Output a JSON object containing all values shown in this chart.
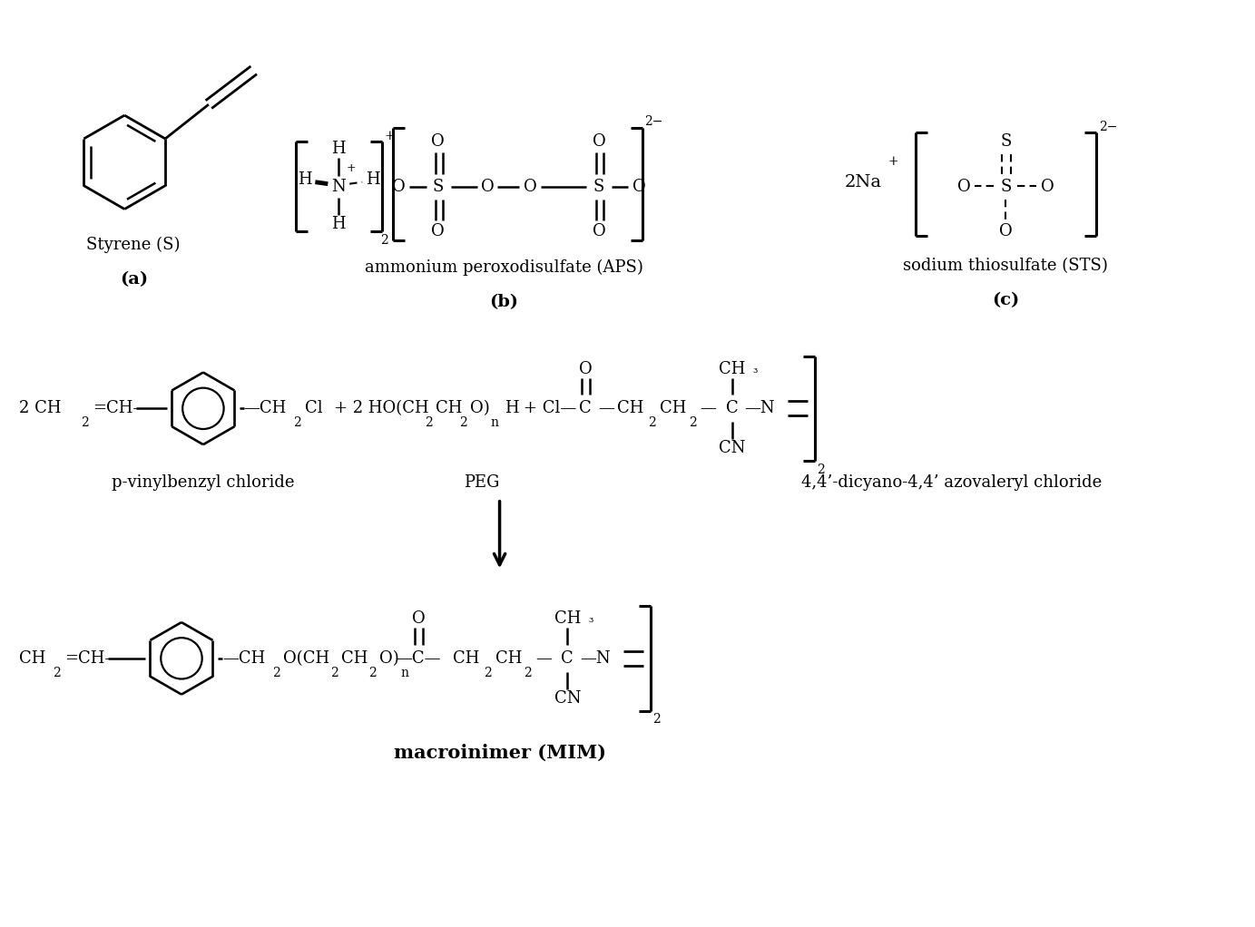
{
  "background_color": "#ffffff",
  "figure_width": 13.83,
  "figure_height": 10.22,
  "dpi": 100,
  "labels": {
    "styrene_name": "Styrene (S)",
    "styrene_label": "(a)",
    "aps_name": "ammonium peroxodisulfate (APS)",
    "aps_label": "(b)",
    "sts_name": "sodium thiosulfate (STS)",
    "sts_label": "(c)",
    "pvbc_name": "p-vinylbenzyl chloride",
    "peg_name": "PEG",
    "dcac_name": "4,4’-dicyano-4,4’ azovaleryl chloride",
    "macroinimer_name": "macroinimer (MIM)"
  },
  "font_size_main": 13,
  "font_size_sub": 10,
  "font_size_label": 13,
  "font_size_bold": 14
}
